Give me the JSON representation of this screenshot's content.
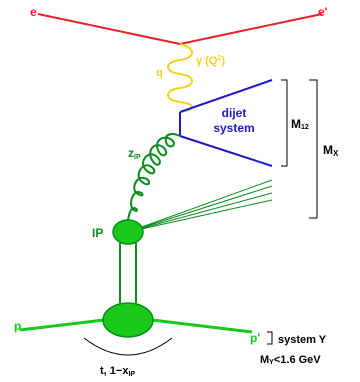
{
  "labels": {
    "electron_in": "e",
    "electron_out": "e'",
    "photon_q": "q",
    "photon_gamma": "γ (Q",
    "photon_gamma_sup": "2",
    "photon_gamma_close": ")",
    "dijet_line1": "dijet",
    "dijet_line2": "system",
    "m12_main": "M",
    "m12_sub": "12",
    "mx_main": "M",
    "mx_sub": "X",
    "z_main": "z",
    "z_sub": "IP",
    "pomeron": "IP",
    "proton_in": "p",
    "proton_out": "p'",
    "system_y": "system Y",
    "my_main": "M",
    "my_sub": "Y",
    "my_rest": "<1.6 GeV",
    "t_main": "t, 1−x",
    "t_sub": "IP"
  },
  "colors": {
    "electron": "#e8212a",
    "photon": "#f2d21c",
    "jet": "#1a1acc",
    "gluon": "#0b8a1e",
    "pomeron_fill": "#19c919",
    "proton": "#19c919",
    "black": "#000000"
  }
}
